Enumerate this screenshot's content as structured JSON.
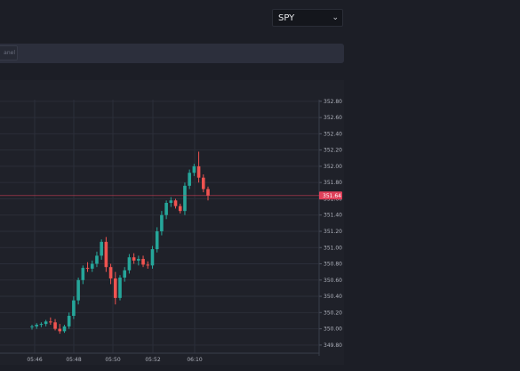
{
  "symbol_select": {
    "value": "SPY"
  },
  "toolbar": {
    "button_label": "anel"
  },
  "colors": {
    "up": "#26a69a",
    "down": "#ef5350",
    "price_line": "#e0405a",
    "price_tag": "#e0405a"
  },
  "chart_data": {
    "type": "candlestick",
    "x_ticks": [
      "05:46",
      "05:48",
      "05:50",
      "05:52",
      "06:10"
    ],
    "y_ticks": [
      "352.80",
      "352.60",
      "352.40",
      "352.20",
      "352.00",
      "351.80",
      "351.60",
      "351.40",
      "351.20",
      "351.00",
      "350.80",
      "350.60",
      "350.40",
      "350.20",
      "350.00",
      "349.80"
    ],
    "ylim": [
      349.7,
      352.82
    ],
    "last_price": "351.64",
    "candles": [
      {
        "o": 350.02,
        "h": 350.05,
        "l": 349.99,
        "c": 350.03
      },
      {
        "o": 350.03,
        "h": 350.07,
        "l": 350.0,
        "c": 350.05
      },
      {
        "o": 350.05,
        "h": 350.08,
        "l": 350.02,
        "c": 350.06
      },
      {
        "o": 350.06,
        "h": 350.11,
        "l": 350.03,
        "c": 350.09
      },
      {
        "o": 350.09,
        "h": 350.14,
        "l": 350.05,
        "c": 350.08
      },
      {
        "o": 350.08,
        "h": 350.12,
        "l": 349.98,
        "c": 350.0
      },
      {
        "o": 350.0,
        "h": 350.06,
        "l": 349.94,
        "c": 349.97
      },
      {
        "o": 349.97,
        "h": 350.05,
        "l": 349.95,
        "c": 350.03
      },
      {
        "o": 350.03,
        "h": 350.2,
        "l": 350.0,
        "c": 350.16
      },
      {
        "o": 350.16,
        "h": 350.4,
        "l": 350.12,
        "c": 350.35
      },
      {
        "o": 350.35,
        "h": 350.63,
        "l": 350.3,
        "c": 350.6
      },
      {
        "o": 350.6,
        "h": 350.78,
        "l": 350.55,
        "c": 350.75
      },
      {
        "o": 350.75,
        "h": 350.82,
        "l": 350.7,
        "c": 350.74
      },
      {
        "o": 350.74,
        "h": 350.84,
        "l": 350.7,
        "c": 350.8
      },
      {
        "o": 350.8,
        "h": 350.95,
        "l": 350.76,
        "c": 350.9
      },
      {
        "o": 350.9,
        "h": 351.1,
        "l": 350.85,
        "c": 351.07
      },
      {
        "o": 351.07,
        "h": 351.13,
        "l": 350.7,
        "c": 350.76
      },
      {
        "o": 350.76,
        "h": 350.8,
        "l": 350.55,
        "c": 350.62
      },
      {
        "o": 350.62,
        "h": 350.7,
        "l": 350.3,
        "c": 350.38
      },
      {
        "o": 350.38,
        "h": 350.66,
        "l": 350.35,
        "c": 350.63
      },
      {
        "o": 350.63,
        "h": 350.76,
        "l": 350.58,
        "c": 350.72
      },
      {
        "o": 350.72,
        "h": 350.92,
        "l": 350.68,
        "c": 350.88
      },
      {
        "o": 350.88,
        "h": 350.93,
        "l": 350.8,
        "c": 350.84
      },
      {
        "o": 350.84,
        "h": 350.9,
        "l": 350.78,
        "c": 350.86
      },
      {
        "o": 350.86,
        "h": 350.9,
        "l": 350.76,
        "c": 350.79
      },
      {
        "o": 350.79,
        "h": 350.83,
        "l": 350.74,
        "c": 350.78
      },
      {
        "o": 350.78,
        "h": 351.02,
        "l": 350.74,
        "c": 350.98
      },
      {
        "o": 350.98,
        "h": 351.25,
        "l": 350.94,
        "c": 351.2
      },
      {
        "o": 351.2,
        "h": 351.45,
        "l": 351.15,
        "c": 351.4
      },
      {
        "o": 351.4,
        "h": 351.58,
        "l": 351.35,
        "c": 351.55
      },
      {
        "o": 351.55,
        "h": 351.62,
        "l": 351.5,
        "c": 351.58
      },
      {
        "o": 351.58,
        "h": 351.6,
        "l": 351.48,
        "c": 351.51
      },
      {
        "o": 351.51,
        "h": 351.54,
        "l": 351.42,
        "c": 351.45
      },
      {
        "o": 351.45,
        "h": 351.8,
        "l": 351.4,
        "c": 351.76
      },
      {
        "o": 351.76,
        "h": 351.96,
        "l": 351.72,
        "c": 351.92
      },
      {
        "o": 351.92,
        "h": 352.03,
        "l": 351.88,
        "c": 352.0
      },
      {
        "o": 352.0,
        "h": 352.18,
        "l": 351.8,
        "c": 351.86
      },
      {
        "o": 351.86,
        "h": 351.9,
        "l": 351.68,
        "c": 351.72
      },
      {
        "o": 351.72,
        "h": 351.75,
        "l": 351.58,
        "c": 351.64
      }
    ]
  }
}
